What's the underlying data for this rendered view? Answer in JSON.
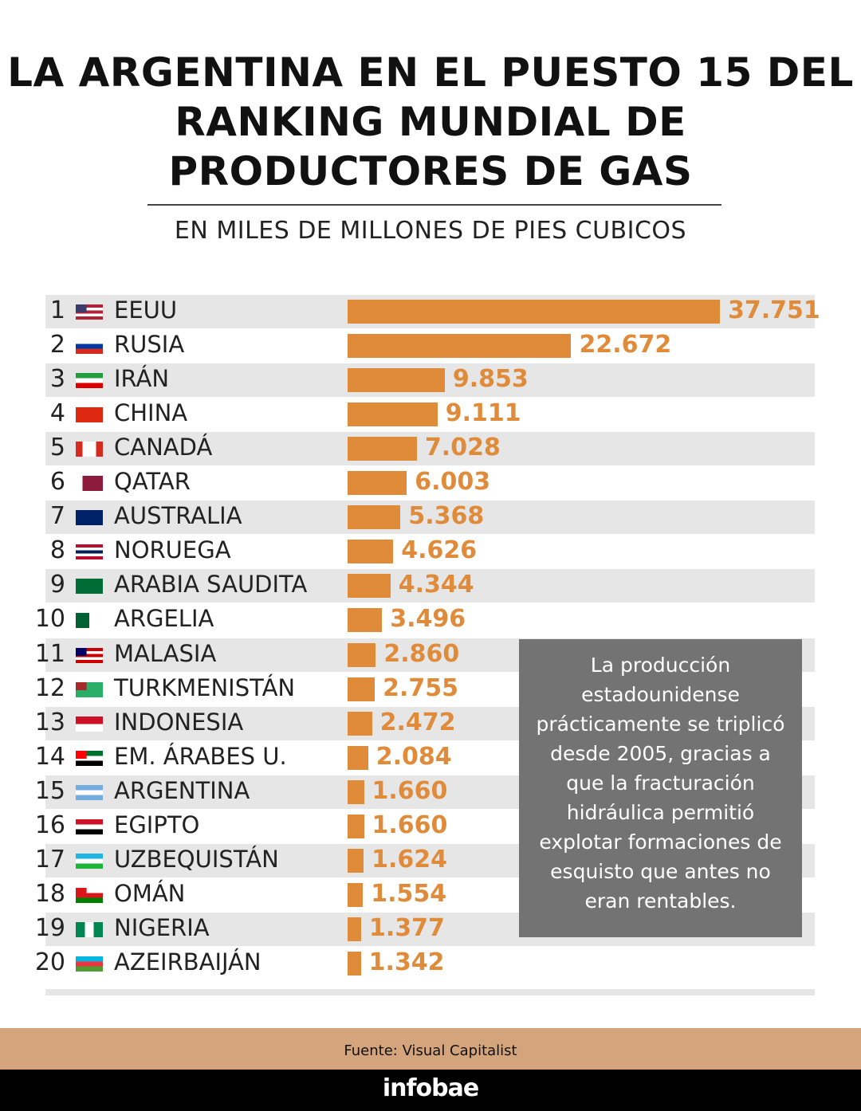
{
  "title": "LA ARGENTINA EN EL PUESTO 15 DEL RANKING MUNDIAL DE PRODUCTORES DE GAS",
  "subtitle": "EN MILES DE MILLONES DE PIES CUBICOS",
  "note": "La producción estadounidense prácticamente se triplicó desde 2005, gracias a que la fracturación hidráulica permitió explotar formaciones de esquisto que antes no eran rentables.",
  "source": "Fuente: Visual Capitalist",
  "brand": "infobae",
  "colors": {
    "bar": "#e08b3a",
    "row_alt": "#e6e6e6",
    "note_bg": "#737373",
    "source_band": "#d4a47c"
  },
  "chart_data": {
    "type": "bar",
    "orientation": "horizontal",
    "title": "LA ARGENTINA EN EL PUESTO 15 DEL RANKING MUNDIAL DE PRODUCTORES DE GAS",
    "subtitle": "EN MILES DE MILLONES DE PIES CUBICOS",
    "categories": [
      "EEUU",
      "RUSIA",
      "IRÁN",
      "CHINA",
      "CANADÁ",
      "QATAR",
      "AUSTRALIA",
      "NORUEGA",
      "ARABIA SAUDITA",
      "ARGELIA",
      "MALASIA",
      "TURKMENISTÁN",
      "INDONESIA",
      "EM. ÁRABES U.",
      "ARGENTINA",
      "EGIPTO",
      "UZBEQUISTÁN",
      "OMÁN",
      "NIGERIA",
      "AZEIRBAIJÁN"
    ],
    "ranks": [
      "1",
      "2",
      "3",
      "4",
      "5",
      "6",
      "7",
      "8",
      "9",
      "10",
      "11",
      "12",
      "13",
      "14",
      "15",
      "16",
      "17",
      "18",
      "19",
      "20"
    ],
    "values": [
      37751,
      22672,
      9853,
      9111,
      7028,
      6003,
      5368,
      4626,
      4344,
      3496,
      2860,
      2755,
      2472,
      2084,
      1660,
      1660,
      1624,
      1554,
      1377,
      1342
    ],
    "value_labels": [
      "37.751",
      "22.672",
      "9.853",
      "9.111",
      "7.028",
      "6.003",
      "5.368",
      "4.626",
      "4.344",
      "3.496",
      "2.860",
      "2.755",
      "2.472",
      "2.084",
      "1.660",
      "1.660",
      "1.624",
      "1.554",
      "1.377",
      "1.342"
    ],
    "flags": [
      {
        "dir": "h",
        "colors": [
          "#b22234",
          "#fff",
          "#b22234",
          "#fff",
          "#b22234"
        ],
        "canton": "#3c3b6e"
      },
      {
        "dir": "h",
        "colors": [
          "#fff",
          "#0039a6",
          "#d52b1e"
        ]
      },
      {
        "dir": "h",
        "colors": [
          "#239f40",
          "#fff",
          "#da0000"
        ]
      },
      {
        "dir": "h",
        "colors": [
          "#de2910"
        ]
      },
      {
        "dir": "v",
        "colors": [
          "#d52b1e",
          "#fff",
          "#fff",
          "#d52b1e"
        ]
      },
      {
        "dir": "v",
        "colors": [
          "#fff",
          "#8d1b3d",
          "#8d1b3d",
          "#8d1b3d"
        ]
      },
      {
        "dir": "h",
        "colors": [
          "#012169"
        ]
      },
      {
        "dir": "h",
        "colors": [
          "#ba0c2f",
          "#fff",
          "#00205b",
          "#fff",
          "#ba0c2f"
        ]
      },
      {
        "dir": "h",
        "colors": [
          "#006c35"
        ]
      },
      {
        "dir": "v",
        "colors": [
          "#006233",
          "#fff"
        ]
      },
      {
        "dir": "h",
        "colors": [
          "#cc0001",
          "#fff",
          "#cc0001",
          "#fff",
          "#cc0001"
        ],
        "canton": "#010066"
      },
      {
        "dir": "v",
        "colors": [
          "#28ae66",
          "#28ae66",
          "#28ae66",
          "#28ae66"
        ],
        "canton": "#a52a2a"
      },
      {
        "dir": "h",
        "colors": [
          "#ce1126",
          "#fff"
        ]
      },
      {
        "dir": "h",
        "colors": [
          "#00732f",
          "#fff",
          "#000"
        ],
        "canton": "#ff0000"
      },
      {
        "dir": "h",
        "colors": [
          "#74acdf",
          "#fff",
          "#74acdf"
        ]
      },
      {
        "dir": "h",
        "colors": [
          "#ce1126",
          "#fff",
          "#000"
        ]
      },
      {
        "dir": "h",
        "colors": [
          "#1eb5e0",
          "#fff",
          "#1eb53a"
        ]
      },
      {
        "dir": "h",
        "colors": [
          "#fff",
          "#db161b",
          "#008000"
        ],
        "canton": "#db161b"
      },
      {
        "dir": "v",
        "colors": [
          "#008751",
          "#fff",
          "#008751"
        ]
      },
      {
        "dir": "h",
        "colors": [
          "#00b5e2",
          "#ef3340",
          "#509e2f"
        ]
      }
    ],
    "xlim": [
      0,
      37751
    ],
    "grid": false,
    "legend": "none"
  }
}
